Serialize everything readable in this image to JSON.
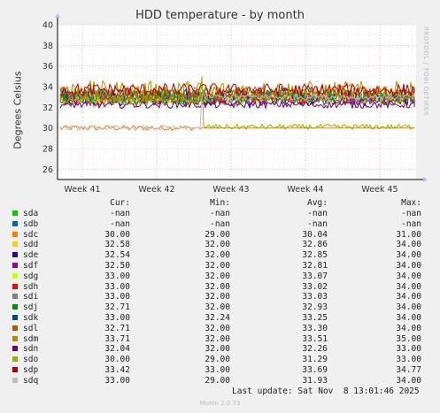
{
  "chart_data": {
    "type": "line",
    "title": "HDD temperature - by month",
    "ylabel": "Degrees Celsius",
    "ylim": [
      25,
      40
    ],
    "yticks": [
      "26",
      "28",
      "30",
      "32",
      "34",
      "36",
      "38",
      "40"
    ],
    "categories": [
      "Week 41",
      "Week 42",
      "Week 43",
      "Week 44",
      "Week 45"
    ],
    "grid": true,
    "series": [
      {
        "name": "sda",
        "color": "#00cc00",
        "cur": "-nan",
        "min": "-nan",
        "avg": "-nan",
        "max": "-nan"
      },
      {
        "name": "sdb",
        "color": "#0066b3",
        "cur": "-nan",
        "min": "-nan",
        "avg": "-nan",
        "max": "-nan"
      },
      {
        "name": "sdc",
        "color": "#ff8000",
        "cur": "30.00",
        "min": "29.00",
        "avg": "30.04",
        "max": "31.00"
      },
      {
        "name": "sdd",
        "color": "#ffcc00",
        "cur": "32.58",
        "min": "32.00",
        "avg": "32.86",
        "max": "34.00"
      },
      {
        "name": "sde",
        "color": "#330099",
        "cur": "32.54",
        "min": "32.00",
        "avg": "32.85",
        "max": "34.00"
      },
      {
        "name": "sdf",
        "color": "#990099",
        "cur": "32.50",
        "min": "32.00",
        "avg": "32.81",
        "max": "34.00"
      },
      {
        "name": "sdg",
        "color": "#ccff00",
        "cur": "33.00",
        "min": "32.00",
        "avg": "33.07",
        "max": "34.00"
      },
      {
        "name": "sdh",
        "color": "#ff0000",
        "cur": "33.00",
        "min": "32.00",
        "avg": "33.02",
        "max": "34.00"
      },
      {
        "name": "sdi",
        "color": "#808080",
        "cur": "33.00",
        "min": "32.00",
        "avg": "33.03",
        "max": "34.00"
      },
      {
        "name": "sdj",
        "color": "#008f00",
        "cur": "32.71",
        "min": "32.00",
        "avg": "32.93",
        "max": "34.00"
      },
      {
        "name": "sdk",
        "color": "#00487d",
        "cur": "33.00",
        "min": "32.24",
        "avg": "33.25",
        "max": "34.00"
      },
      {
        "name": "sdl",
        "color": "#b35a00",
        "cur": "32.71",
        "min": "32.00",
        "avg": "33.30",
        "max": "34.00"
      },
      {
        "name": "sdm",
        "color": "#b38f00",
        "cur": "33.71",
        "min": "32.00",
        "avg": "33.51",
        "max": "35.00"
      },
      {
        "name": "sdn",
        "color": "#6b006b",
        "cur": "32.04",
        "min": "32.00",
        "avg": "32.26",
        "max": "33.00"
      },
      {
        "name": "sdo",
        "color": "#8fb300",
        "cur": "30.00",
        "min": "29.00",
        "avg": "31.29",
        "max": "33.00"
      },
      {
        "name": "sdp",
        "color": "#b30000",
        "cur": "33.42",
        "min": "33.00",
        "avg": "33.69",
        "max": "34.77"
      },
      {
        "name": "sdq",
        "color": "#bebebe",
        "cur": "33.00",
        "min": "29.00",
        "avg": "31.93",
        "max": "34.00"
      }
    ]
  },
  "legend_headers": {
    "cur": "Cur:",
    "min": "Min:",
    "avg": "Avg:",
    "max": "Max:"
  },
  "vendor_text": "RRDTOOL / TOBI OETIKER",
  "last_update": "Last update: Sat Nov  8 13:01:46 2025",
  "footer": "Munin 2.0.73"
}
